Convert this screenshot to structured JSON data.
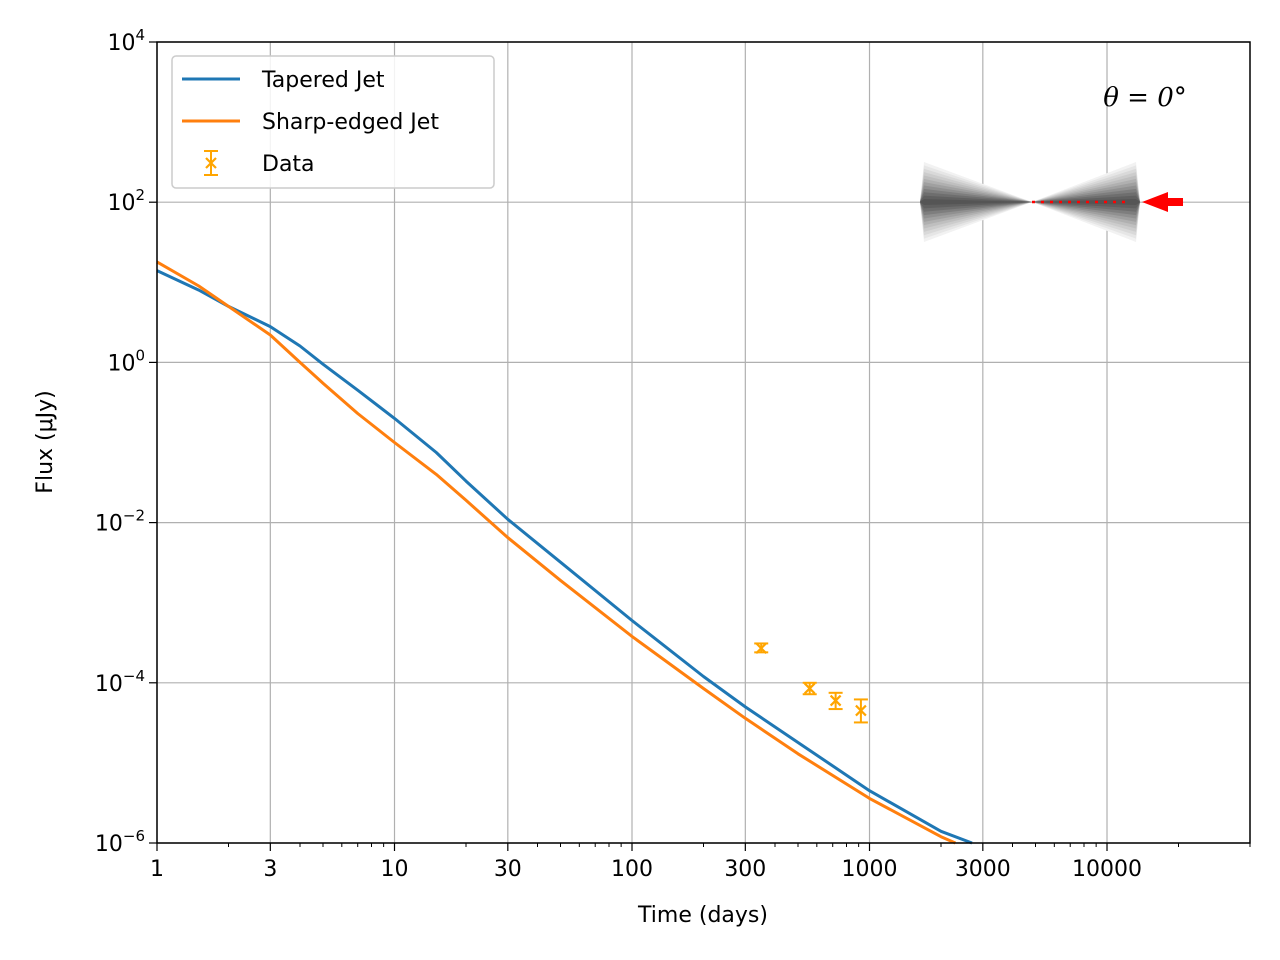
{
  "chart_data": {
    "type": "line",
    "title": "",
    "xlabel": "Time (days)",
    "ylabel": "Flux (μJy)",
    "xscale": "log",
    "yscale": "log",
    "xlim": [
      1,
      40000
    ],
    "ylim": [
      1e-06,
      10000
    ],
    "grid": true,
    "legend_position": "top-left",
    "x_ticks": [
      {
        "value": 1,
        "label": "1"
      },
      {
        "value": 3,
        "label": "3"
      },
      {
        "value": 10,
        "label": "10"
      },
      {
        "value": 30,
        "label": "30"
      },
      {
        "value": 100,
        "label": "100"
      },
      {
        "value": 300,
        "label": "300"
      },
      {
        "value": 1000,
        "label": "1000"
      },
      {
        "value": 3000,
        "label": "3000"
      },
      {
        "value": 10000,
        "label": "10000"
      }
    ],
    "y_ticks": [
      {
        "value": 1e-06,
        "base": "10",
        "exp": "−6"
      },
      {
        "value": 0.0001,
        "base": "10",
        "exp": "−4"
      },
      {
        "value": 0.01,
        "base": "10",
        "exp": "−2"
      },
      {
        "value": 1,
        "base": "10",
        "exp": "0"
      },
      {
        "value": 100,
        "base": "10",
        "exp": "2"
      },
      {
        "value": 10000,
        "base": "10",
        "exp": "4"
      }
    ],
    "series": [
      {
        "name": "Tapered Jet",
        "color": "#1f77b4",
        "x": [
          1,
          1.5,
          2,
          3,
          4,
          5,
          7,
          10,
          15,
          20,
          30,
          50,
          100,
          200,
          300,
          500,
          1000,
          2000,
          2700
        ],
        "y": [
          14,
          8,
          5,
          2.8,
          1.6,
          0.95,
          0.45,
          0.2,
          0.075,
          0.033,
          0.011,
          0.0032,
          0.0006,
          0.00012,
          5e-05,
          1.8e-05,
          4.5e-06,
          1.4e-06,
          1e-06
        ]
      },
      {
        "name": "Sharp-edged Jet",
        "color": "#ff7f0e",
        "x": [
          1,
          1.5,
          2,
          3,
          4,
          5,
          7,
          10,
          15,
          20,
          30,
          50,
          100,
          200,
          300,
          500,
          1000,
          2000,
          2300
        ],
        "y": [
          18,
          9,
          5,
          2.2,
          1.0,
          0.55,
          0.23,
          0.1,
          0.04,
          0.019,
          0.0065,
          0.0019,
          0.00038,
          8.5e-05,
          3.6e-05,
          1.3e-05,
          3.6e-06,
          1.2e-06,
          1e-06
        ]
      }
    ],
    "data_series": {
      "name": "Data",
      "color": "#ffa500",
      "points": [
        {
          "x": 350,
          "y": 0.00027,
          "ylo": 0.00024,
          "yhi": 0.00031
        },
        {
          "x": 560,
          "y": 8.5e-05,
          "ylo": 7.2e-05,
          "yhi": 0.0001
        },
        {
          "x": 720,
          "y": 6e-05,
          "ylo": 4.7e-05,
          "yhi": 7.5e-05
        },
        {
          "x": 920,
          "y": 4.5e-05,
          "ylo": 3.2e-05,
          "yhi": 6.2e-05
        }
      ]
    },
    "annotation": {
      "text": "θ = 0°",
      "inset": "jet-viewing-angle-diagram",
      "arrow_color": "#ff0000"
    }
  }
}
